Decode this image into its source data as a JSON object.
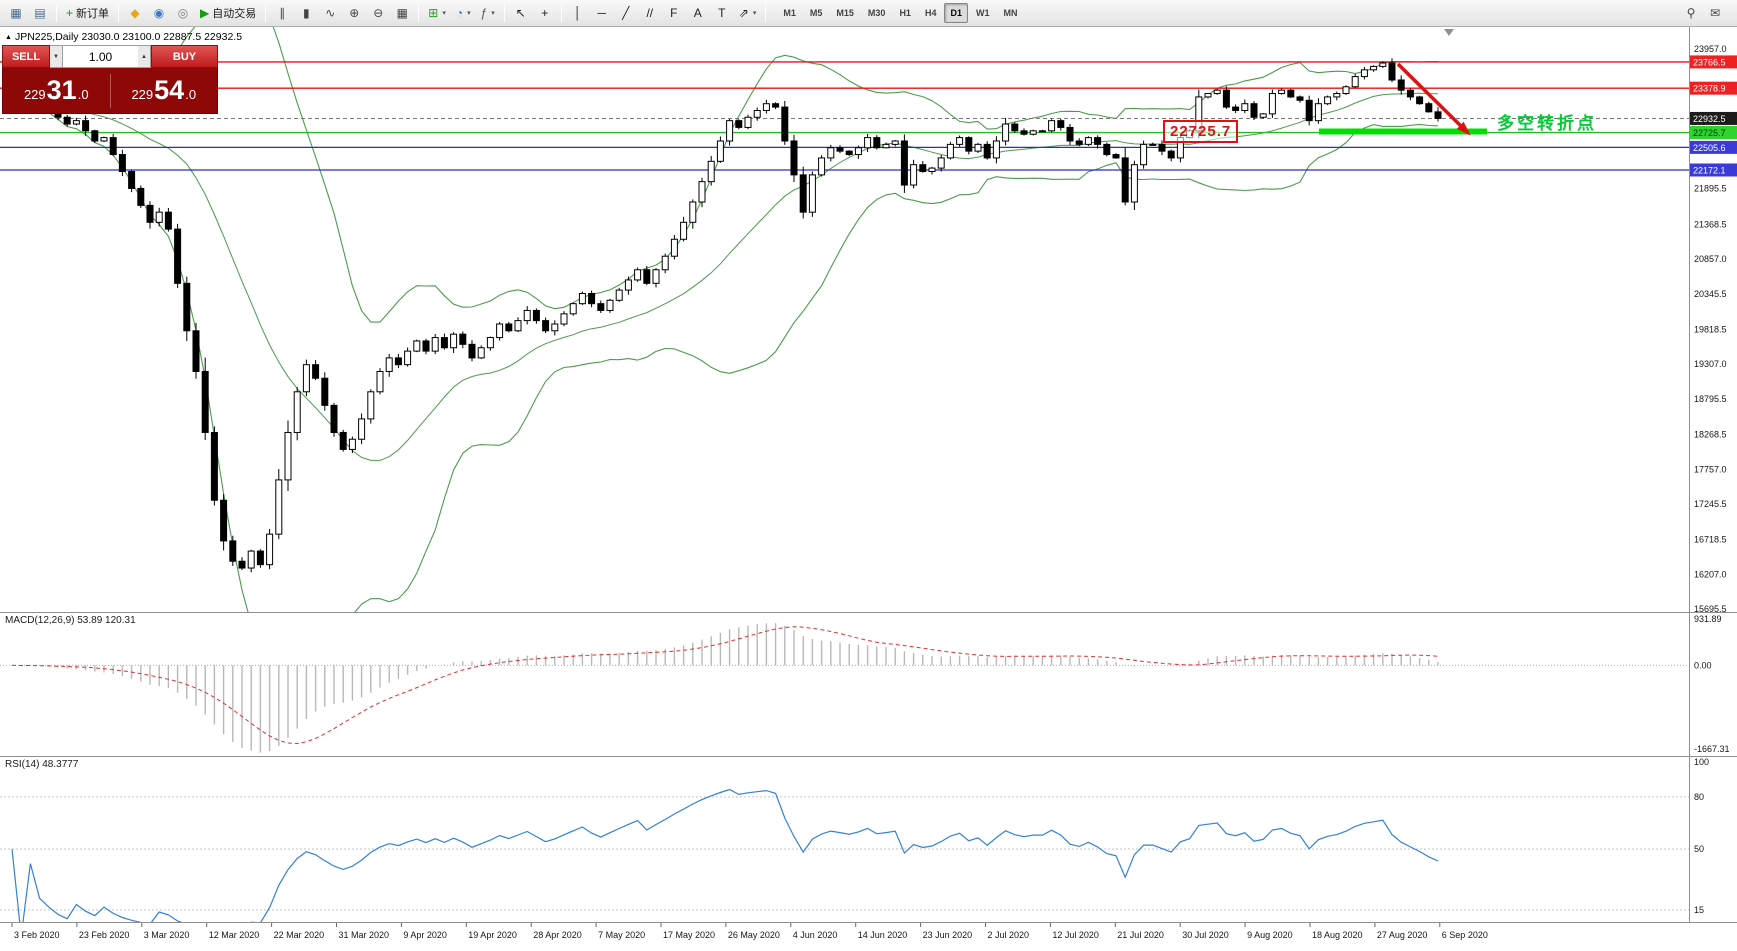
{
  "toolbar": {
    "dropdown_glyph": "▾",
    "items": [
      {
        "name": "new-chart-icon-button",
        "glyph": "▦",
        "color": "#4a6b8a"
      },
      {
        "name": "chart-profile-icon-button",
        "glyph": "▤",
        "color": "#4a6b8a"
      },
      {
        "name": "sep"
      },
      {
        "name": "new-order-button",
        "glyph": "+",
        "color": "#169a16",
        "label": "新订单"
      },
      {
        "name": "sep"
      },
      {
        "name": "market-watch-icon-button",
        "glyph": "◆",
        "color": "#e8a517"
      },
      {
        "name": "data-window-icon-button",
        "glyph": "◉",
        "color": "#3a78c3"
      },
      {
        "name": "navigator-icon-button",
        "glyph": "◎",
        "color": "#7d7d7d"
      },
      {
        "name": "autotrading-button",
        "glyph": "▶",
        "color": "#169a16",
        "label": "自动交易"
      },
      {
        "name": "sep"
      },
      {
        "name": "bar-chart-icon-button",
        "glyph": "∥",
        "color": "#444444"
      },
      {
        "name": "candlestick-chart-icon-button",
        "glyph": "▮",
        "color": "#444444"
      },
      {
        "name": "line-chart-icon-button",
        "glyph": "∿",
        "color": "#444444"
      },
      {
        "name": "zoom-in-icon-button",
        "glyph": "⊕",
        "color": "#444444"
      },
      {
        "name": "zoom-out-icon-button",
        "glyph": "⊖",
        "color": "#444444"
      },
      {
        "name": "tile-windows-icon-button",
        "glyph": "▦",
        "color": "#444444"
      },
      {
        "name": "sep"
      },
      {
        "name": "templates-icon-button",
        "glyph": "⊞",
        "color": "#2a9a2a",
        "dropdown": true
      },
      {
        "name": "period-clock-icon-button",
        "glyph": "◔",
        "color": "#3a78c3",
        "dropdown": true
      },
      {
        "name": "indicators-icon-button",
        "glyph": "ƒ",
        "color": "#555555",
        "dropdown": true
      },
      {
        "name": "sep"
      },
      {
        "name": "cursor-icon-button",
        "glyph": "↖",
        "color": "#222222"
      },
      {
        "name": "crosshair-icon-button",
        "glyph": "+",
        "color": "#222222"
      },
      {
        "name": "sep"
      },
      {
        "name": "vertical-line-icon-button",
        "glyph": "│",
        "color": "#222222"
      },
      {
        "name": "horizontal-line-icon-button",
        "glyph": "─",
        "color": "#222222"
      },
      {
        "name": "trendline-icon-button",
        "glyph": "╱",
        "color": "#222222"
      },
      {
        "name": "channel-icon-button",
        "glyph": "//",
        "color": "#222222"
      },
      {
        "name": "fibonacci-icon-button",
        "glyph": "F",
        "color": "#222222"
      },
      {
        "name": "text-icon-button",
        "glyph": "A",
        "color": "#222222"
      },
      {
        "name": "label-icon-button",
        "glyph": "T",
        "color": "#222222"
      },
      {
        "name": "arrows-icon-button",
        "glyph": "⇗",
        "color": "#222222",
        "dropdown": true
      },
      {
        "name": "sep"
      }
    ],
    "timeframes": [
      "M1",
      "M5",
      "M15",
      "M30",
      "H1",
      "H4",
      "D1",
      "W1",
      "MN"
    ],
    "active_timeframe": "D1",
    "right_items": [
      {
        "name": "search-icon-button",
        "glyph": "⚲",
        "color": "#444444"
      },
      {
        "name": "chat-icon-button",
        "glyph": "✉",
        "color": "#444444"
      }
    ]
  },
  "symbol_info": {
    "marker": "▲",
    "text": "JPN225,Daily  23030.0 23100.0 22887.5 22932.5"
  },
  "trade_panel": {
    "sell_label": "SELL",
    "buy_label": "BUY",
    "lot_value": "1.00",
    "spin_down_glyph": "▼",
    "spin_up_glyph": "▲",
    "sell_price": {
      "prefix": "229",
      "big": "31",
      "suffix": ".0"
    },
    "buy_price": {
      "prefix": "229",
      "big": "54",
      "suffix": ".0"
    }
  },
  "annotations": {
    "price_callout": "22725.7",
    "turning_point_label": "多空转折点"
  },
  "chart_data": {
    "type": "candlestick",
    "symbol": "JPN225",
    "timeframe": "Daily",
    "ohlc_last": {
      "open": 23030.0,
      "high": 23100.0,
      "low": 22887.5,
      "close": 22932.5
    },
    "closes": [
      23250,
      23180,
      23230,
      23120,
      23050,
      22950,
      22850,
      22900,
      22750,
      22600,
      22650,
      22400,
      22150,
      21900,
      21650,
      21400,
      21550,
      21300,
      20500,
      19800,
      19200,
      18300,
      17300,
      16700,
      16400,
      16300,
      16550,
      16350,
      16800,
      17600,
      18300,
      18900,
      19300,
      19100,
      18700,
      18300,
      18050,
      18200,
      18500,
      18900,
      19200,
      19400,
      19300,
      19500,
      19650,
      19500,
      19700,
      19550,
      19750,
      19600,
      19400,
      19550,
      19700,
      19900,
      19800,
      19950,
      20100,
      19950,
      19800,
      19900,
      20050,
      20200,
      20350,
      20200,
      20100,
      20250,
      20400,
      20550,
      20700,
      20500,
      20700,
      20900,
      21150,
      21400,
      21700,
      22000,
      22300,
      22600,
      22900,
      22800,
      22950,
      23050,
      23150,
      23100,
      22600,
      22100,
      21550,
      22100,
      22350,
      22500,
      22450,
      22400,
      22500,
      22650,
      22500,
      22550,
      22600,
      21950,
      22250,
      22150,
      22200,
      22350,
      22550,
      22650,
      22450,
      22550,
      22350,
      22600,
      22850,
      22750,
      22700,
      22750,
      22750,
      22900,
      22800,
      22600,
      22550,
      22650,
      22550,
      22400,
      22350,
      21700,
      22250,
      22550,
      22550,
      22450,
      22350,
      22650,
      22750,
      23250,
      23300,
      23350,
      23100,
      23050,
      23150,
      22950,
      23000,
      23300,
      23350,
      23250,
      23200,
      22900,
      23150,
      23250,
      23300,
      23400,
      23550,
      23650,
      23700,
      23750,
      23500,
      23350,
      23250,
      23150,
      23030,
      22932.5
    ],
    "price_axis_ticks": [
      "23957.0",
      "21895.5",
      "21368.5",
      "20857.0",
      "20345.5",
      "19818.5",
      "19307.0",
      "18795.5",
      "18268.5",
      "17757.0",
      "17245.5",
      "16718.5",
      "16207.0",
      "15695.5"
    ],
    "levels": [
      {
        "value": 23766.5,
        "label": "23766.5",
        "line_color": "#ee1111",
        "tag_color": "#ee2222",
        "text_color": "#ffffff",
        "style": "solid"
      },
      {
        "value": 23378.9,
        "label": "23378.9",
        "line_color": "#ee1111",
        "tag_color": "#ee2222",
        "text_color": "#ffffff",
        "style": "solid"
      },
      {
        "value": 22932.5,
        "label": "22932.5",
        "line_color": "#777777",
        "tag_color": "#1c1c1c",
        "text_color": "#ffffff",
        "style": "dashed"
      },
      {
        "value": 22725.7,
        "label": "22725.7",
        "line_color": "#1fbf1f",
        "tag_color": "#2ed32e",
        "text_color": "#06330a",
        "style": "solid"
      },
      {
        "value": 22505.6,
        "label": "22505.6",
        "line_color": "#2b2bd0",
        "tag_color": "#3a3ad6",
        "text_color": "#ffffff",
        "style": "solid"
      },
      {
        "value": 22172.1,
        "label": "22172.1",
        "line_color": "#2b2bd0",
        "tag_color": "#3a3ad6",
        "text_color": "#ffffff",
        "style": "solid"
      }
    ],
    "indicators": {
      "bollinger_period": 20,
      "bollinger_dev": 2,
      "macd": [
        12,
        26,
        9
      ],
      "rsi_period": 14
    },
    "colors": {
      "band": "#4e9a4e",
      "candle": "#000000",
      "macd_hist": "#b8b8b8",
      "macd_signal": "#e03030",
      "rsi_line": "#3381d6",
      "support_bar": "#00e000",
      "trend_arrow": "#dd1111",
      "axis_text": "#151515"
    }
  },
  "macd_panel": {
    "label": "MACD(12,26,9) 53.89 120.31",
    "axis_max": "931.89",
    "axis_zero": "0.00",
    "axis_min": "-1667.31"
  },
  "rsi_panel": {
    "label": "RSI(14) 48.3777",
    "axis_labels": [
      "100",
      "80",
      "50",
      "15"
    ]
  },
  "date_axis": [
    "3 Feb 2020",
    "23 Feb 2020",
    "3 Mar 2020",
    "12 Mar 2020",
    "22 Mar 2020",
    "31 Mar 2020",
    "9 Apr 2020",
    "19 Apr 2020",
    "28 Apr 2020",
    "7 May 2020",
    "17 May 2020",
    "26 May 2020",
    "4 Jun 2020",
    "14 Jun 2020",
    "23 Jun 2020",
    "2 Jul 2020",
    "12 Jul 2020",
    "21 Jul 2020",
    "30 Jul 2020",
    "9 Aug 2020",
    "18 Aug 2020",
    "27 Aug 2020",
    "6 Sep 2020"
  ]
}
